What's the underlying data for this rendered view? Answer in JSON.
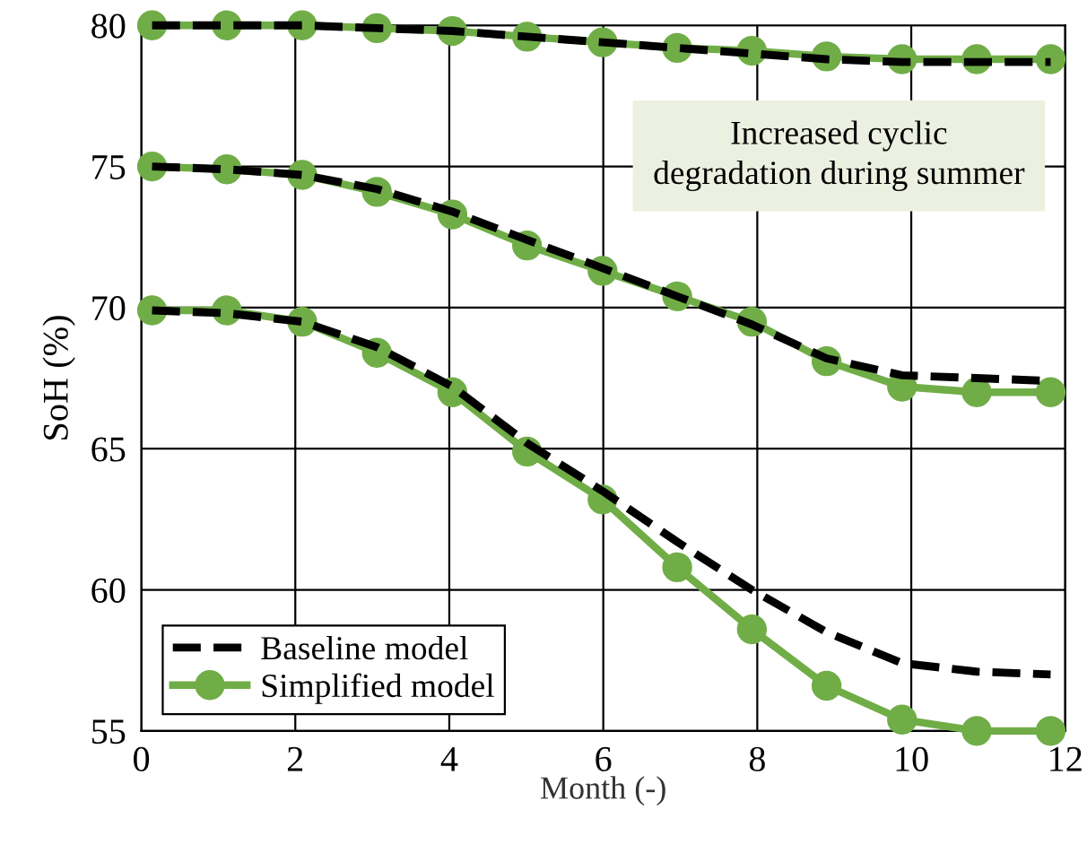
{
  "chart_data": {
    "type": "line",
    "xlabel": "Month (-)",
    "ylabel": "SoH (%)",
    "x": [
      0.14,
      1.11,
      2.09,
      3.06,
      4.04,
      5.01,
      5.99,
      6.96,
      7.93,
      8.9,
      9.88,
      10.85,
      11.81
    ],
    "series": [
      {
        "name": "Baseline model",
        "color": "#000000",
        "line_style": "dashed",
        "marker": "none",
        "values": [
          80.0,
          80.0,
          80.0,
          79.9,
          79.8,
          79.6,
          79.4,
          79.2,
          79.0,
          78.8,
          78.7,
          78.7,
          78.7
        ]
      },
      {
        "color": "#000000",
        "line_style": "dashed",
        "marker": "none",
        "values": [
          75.0,
          74.9,
          74.7,
          74.2,
          73.4,
          72.4,
          71.4,
          70.4,
          69.4,
          68.2,
          67.6,
          67.5,
          67.4
        ]
      },
      {
        "color": "#000000",
        "line_style": "dashed",
        "marker": "none",
        "values": [
          69.9,
          69.8,
          69.5,
          68.6,
          67.2,
          65.2,
          63.5,
          61.7,
          60.0,
          58.5,
          57.4,
          57.1,
          57.0
        ]
      },
      {
        "name": "Simplified model",
        "color": "#70ad47",
        "line_style": "solid",
        "marker": "circle",
        "values": [
          80.0,
          80.0,
          80.0,
          79.9,
          79.8,
          79.6,
          79.4,
          79.2,
          79.1,
          78.9,
          78.8,
          78.8,
          78.8
        ]
      },
      {
        "color": "#70ad47",
        "line_style": "solid",
        "marker": "circle",
        "values": [
          75.0,
          74.9,
          74.7,
          74.1,
          73.3,
          72.2,
          71.3,
          70.4,
          69.5,
          68.1,
          67.2,
          67.0,
          67.0
        ]
      },
      {
        "color": "#70ad47",
        "line_style": "solid",
        "marker": "circle",
        "values": [
          69.9,
          69.9,
          69.5,
          68.4,
          67.0,
          64.9,
          63.2,
          60.8,
          58.6,
          56.6,
          55.4,
          55.0,
          55.0
        ]
      }
    ],
    "xlim": [
      0,
      12
    ],
    "xticks": [
      0,
      2,
      4,
      6,
      8,
      10,
      12
    ],
    "ylim": [
      55,
      80
    ],
    "yticks": [
      55,
      60,
      65,
      70,
      75,
      80
    ],
    "grid": true,
    "legend": "bottom left",
    "annotations": [
      "Increased cyclic\ndegradation during summer"
    ]
  }
}
